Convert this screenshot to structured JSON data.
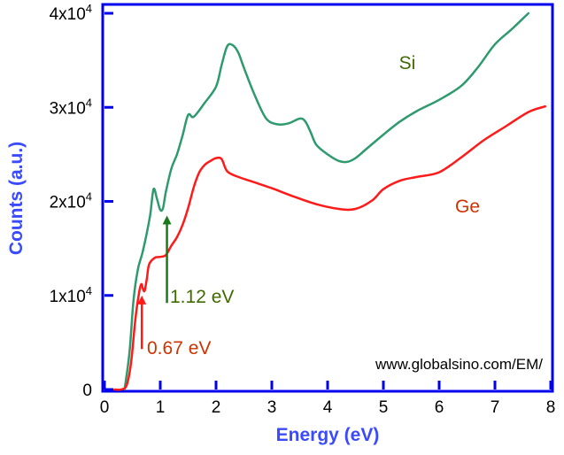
{
  "chart_data": {
    "type": "line",
    "xlabel": "Energy (eV)",
    "ylabel": "Counts (a.u.)",
    "xlim": [
      0,
      8
    ],
    "ylim": [
      0,
      40000
    ],
    "x_ticks": [
      0,
      1,
      2,
      3,
      4,
      5,
      6,
      7,
      8
    ],
    "x_tick_labels": [
      "0",
      "1",
      "2",
      "3",
      "4",
      "5",
      "6",
      "7",
      "8"
    ],
    "y_ticks": [
      0,
      10000,
      20000,
      30000,
      40000
    ],
    "y_tick_labels": [
      {
        "mantissa": "0",
        "exponent": ""
      },
      {
        "mantissa": "1x10",
        "exponent": "4"
      },
      {
        "mantissa": "2x10",
        "exponent": "4"
      },
      {
        "mantissa": "3x10",
        "exponent": "4"
      },
      {
        "mantissa": "4x10",
        "exponent": "4"
      }
    ],
    "grid": false,
    "axis_color": "#0000ee",
    "axis_title_color": "#3a4bff",
    "series": [
      {
        "name": "Si",
        "color": "#2e9a6e",
        "label_color": "#3f6a00",
        "x": [
          0.36,
          0.45,
          0.52,
          0.6,
          0.68,
          0.75,
          0.82,
          0.88,
          0.94,
          1.0,
          1.05,
          1.1,
          1.2,
          1.3,
          1.4,
          1.5,
          1.6,
          1.8,
          2.0,
          2.1,
          2.2,
          2.3,
          2.4,
          2.5,
          2.7,
          2.9,
          3.1,
          3.3,
          3.5,
          3.6,
          3.7,
          3.8,
          4.0,
          4.2,
          4.35,
          4.5,
          4.7,
          5.0,
          5.3,
          5.6,
          6.0,
          6.4,
          6.7,
          7.0,
          7.3,
          7.6
        ],
        "y": [
          0,
          4000,
          9500,
          12800,
          14500,
          16400,
          18600,
          21300,
          20300,
          19100,
          19300,
          21000,
          23500,
          25000,
          27000,
          29200,
          29000,
          30500,
          32200,
          34500,
          36500,
          36600,
          35800,
          34200,
          31200,
          28800,
          28200,
          28300,
          28800,
          28500,
          27300,
          26000,
          25000,
          24300,
          24200,
          24600,
          25600,
          27100,
          28500,
          29600,
          30800,
          32300,
          34300,
          36700,
          38300,
          40000
        ]
      },
      {
        "name": "Ge",
        "color": "#ff1a1a",
        "label_color": "#cc3300",
        "x": [
          0.18,
          0.3,
          0.4,
          0.48,
          0.55,
          0.62,
          0.66,
          0.69,
          0.72,
          0.76,
          0.8,
          0.9,
          1.0,
          1.1,
          1.2,
          1.3,
          1.4,
          1.5,
          1.6,
          1.7,
          1.8,
          1.9,
          2.0,
          2.1,
          2.2,
          2.4,
          2.7,
          3.0,
          3.4,
          3.8,
          4.2,
          4.5,
          4.8,
          5.0,
          5.3,
          5.6,
          6.0,
          6.4,
          6.8,
          7.2,
          7.6,
          7.9
        ],
        "y": [
          0,
          0,
          500,
          3000,
          7300,
          10300,
          11200,
          10700,
          10500,
          11800,
          13300,
          14000,
          14100,
          14300,
          15300,
          16200,
          17500,
          19300,
          21500,
          23100,
          23900,
          24300,
          24600,
          24500,
          23200,
          22600,
          22000,
          21400,
          20500,
          19700,
          19200,
          19200,
          20100,
          21300,
          22200,
          22600,
          23100,
          24700,
          26500,
          28000,
          29500,
          30100
        ]
      }
    ],
    "annotations": [
      {
        "text": "1.12 eV",
        "x": 1.12,
        "y_start": 9200,
        "y_end": 18400,
        "color": "#1a7a1a",
        "label_color": "#3f6a00"
      },
      {
        "text": "0.67 eV",
        "x": 0.67,
        "y_start": 4300,
        "y_end": 9900,
        "color": "#ff1a1a",
        "label_color": "#cc3300"
      }
    ],
    "watermark": "www.globalsino.com/EM/"
  }
}
